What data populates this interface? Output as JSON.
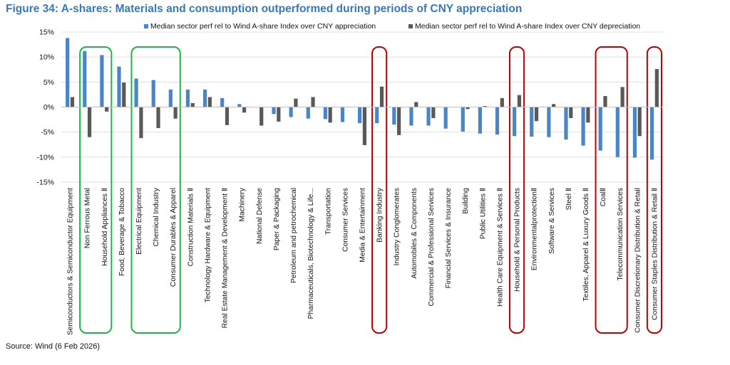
{
  "title": "Figure 34: A-shares: Materials and consumption outperformed during periods of CNY appreciation",
  "source": "Source: Wind (6 Feb 2026)",
  "colors": {
    "appreciation": "#4a86c5",
    "depreciation": "#595959",
    "green_box": "#22b14c",
    "red_box": "#c00000",
    "title": "#3a78b5"
  },
  "chart_data": {
    "type": "bar",
    "ylim": [
      -15,
      15
    ],
    "yticks": [
      "15%",
      "10%",
      "5%",
      "0%",
      "-5%",
      "-10%",
      "-15%"
    ],
    "legend_position": "top",
    "categories": [
      "Semiconductors & Semiconductor Equipment",
      "Non Ferrous Metal",
      "Household Appliances Ⅱ",
      "Food, Beverage & Tobacco",
      "Electrical Equipment",
      "Chemical Industry",
      "Consumer Durables & Apparel",
      "Construction Materials Ⅱ",
      "Technology Hardware & Equipment",
      "Real Estate Management & Development Ⅱ",
      "Machinery",
      "National Defense",
      "Paper & Packaging",
      "Petroleum and petrochemical",
      "Pharmaceuticals, Biotechnology & Life...",
      "Transportation",
      "Consumer Services",
      "Media & Entertainment",
      "Banking Industry",
      "Industry Conglomerates",
      "Automobiles & Components",
      "Commercial & Professional Services",
      "Financial Services & Insurance",
      "Building",
      "Public Utilities Ⅱ",
      "Health Care Equipment & Services Ⅱ",
      "Household & Personal Products",
      "EnvironmentalprotectionⅡ",
      "Software & Services",
      "Steel Ⅱ",
      "Textiles, Apparel & Luxury Goods Ⅱ",
      "CoalⅡ",
      "Telecommunication Services",
      "Consumer Discretionary Distribution & Retail",
      "Consumer Staples Distribution & Retail Ⅱ"
    ],
    "series": [
      {
        "name": "Median sector perf rel to Wind A-share Index over CNY appreciation",
        "values": [
          13.8,
          11.2,
          10.4,
          8.1,
          5.7,
          5.4,
          3.5,
          3.5,
          3.5,
          1.8,
          0.6,
          0.0,
          -1.4,
          -2.0,
          -2.3,
          -2.4,
          -3.0,
          -3.2,
          -3.2,
          -3.5,
          -3.7,
          -3.7,
          -4.3,
          -4.9,
          -5.3,
          -5.5,
          -5.8,
          -5.9,
          -6.0,
          -6.5,
          -7.7,
          -8.7,
          -10.0,
          -10.1,
          -10.5
        ]
      },
      {
        "name": "Median sector perf rel to Wind A-share Index over CNY depreciation",
        "values": [
          2.0,
          -6.0,
          -0.9,
          4.9,
          -6.2,
          -4.2,
          -2.3,
          0.8,
          2.0,
          -3.6,
          -1.1,
          -3.7,
          -2.9,
          1.7,
          2.0,
          -3.1,
          0.0,
          -7.6,
          4.1,
          -5.6,
          1.0,
          -2.2,
          0.0,
          -0.4,
          0.2,
          1.8,
          2.4,
          -2.8,
          0.6,
          -2.2,
          -3.1,
          2.2,
          4.0,
          -5.8,
          7.6
        ]
      }
    ],
    "highlights": [
      {
        "color": "green",
        "categories": [
          "Non Ferrous Metal",
          "Household Appliances Ⅱ"
        ]
      },
      {
        "color": "green",
        "categories": [
          "Electrical Equipment",
          "Chemical Industry",
          "Consumer Durables & Apparel"
        ]
      },
      {
        "color": "red",
        "categories": [
          "Banking Industry"
        ]
      },
      {
        "color": "red",
        "categories": [
          "Household & Personal Products"
        ]
      },
      {
        "color": "red",
        "categories": [
          "CoalⅡ",
          "Telecommunication Services"
        ]
      },
      {
        "color": "red",
        "categories": [
          "Consumer Staples Distribution & Retail Ⅱ"
        ]
      }
    ]
  }
}
